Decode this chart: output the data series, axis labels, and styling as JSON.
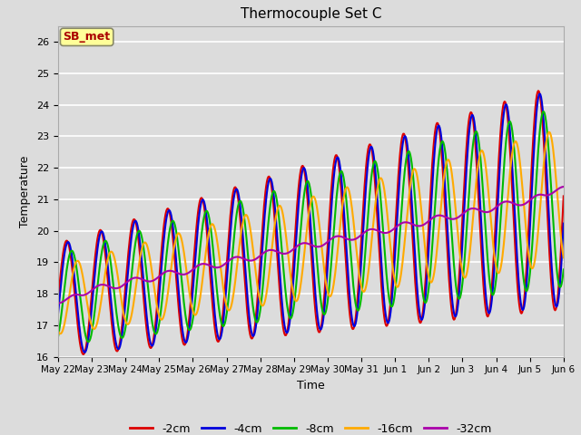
{
  "title": "Thermocouple Set C",
  "xlabel": "Time",
  "ylabel": "Temperature",
  "ylim": [
    16.0,
    26.5
  ],
  "yticks": [
    16.0,
    17.0,
    18.0,
    19.0,
    20.0,
    21.0,
    22.0,
    23.0,
    24.0,
    25.0,
    26.0
  ],
  "xtick_labels": [
    "May 22",
    "May 23",
    "May 24",
    "May 25",
    "May 26",
    "May 27",
    "May 28",
    "May 29",
    "May 30",
    "May 31",
    "Jun 1",
    "Jun 2",
    "Jun 3",
    "Jun 4",
    "Jun 5",
    "Jun 6"
  ],
  "series_colors": [
    "#dd0000",
    "#0000dd",
    "#00bb00",
    "#ffaa00",
    "#aa00aa"
  ],
  "series_labels": [
    "-2cm",
    "-4cm",
    "-8cm",
    "-16cm",
    "-32cm"
  ],
  "background_color": "#dcdcdc",
  "annotation_text": "SB_met",
  "annotation_bg": "#ffff99",
  "annotation_fg": "#aa0000",
  "n_points": 720,
  "end_day": 15.0
}
